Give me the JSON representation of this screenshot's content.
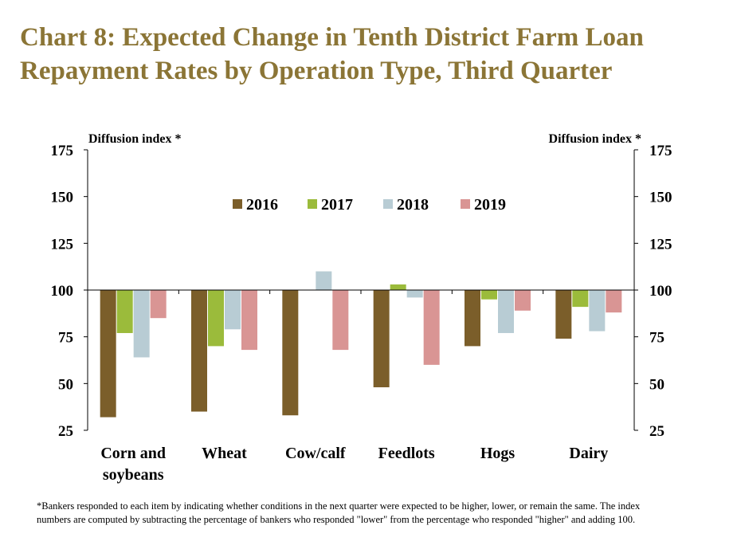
{
  "title": "Chart 8: Expected Change in Tenth District Farm Loan Repayment Rates by Operation Type, Third Quarter",
  "footnote": "*Bankers responded to each item by indicating whether conditions in the next quarter were expected to be higher, lower, or remain the same.  The index numbers are computed by subtracting the percentage of bankers who responded \"lower\" from the percentage who responded \"higher\" and adding 100.",
  "chart_data": {
    "type": "bar",
    "ylabel_left": "Diffusion index *",
    "ylabel_right": "Diffusion index *",
    "ylim": [
      25,
      175
    ],
    "yticks": [
      25,
      50,
      75,
      100,
      125,
      150,
      175
    ],
    "baseline": 100,
    "legend_position": "top-center",
    "grid": false,
    "categories": [
      "Corn and soybeans",
      "Wheat",
      "Cow/calf",
      "Feedlots",
      "Hogs",
      "Dairy"
    ],
    "series": [
      {
        "name": "2016",
        "color": "#7B5E2A",
        "values": [
          32,
          35,
          33,
          48,
          70,
          74
        ]
      },
      {
        "name": "2017",
        "color": "#9BBB3B",
        "values": [
          77,
          70,
          null,
          103,
          95,
          91
        ]
      },
      {
        "name": "2018",
        "color": "#B8CCD4",
        "values": [
          64,
          79,
          110,
          96,
          77,
          78
        ]
      },
      {
        "name": "2019",
        "color": "#D99594",
        "values": [
          85,
          68,
          68,
          60,
          89,
          88
        ]
      }
    ]
  }
}
